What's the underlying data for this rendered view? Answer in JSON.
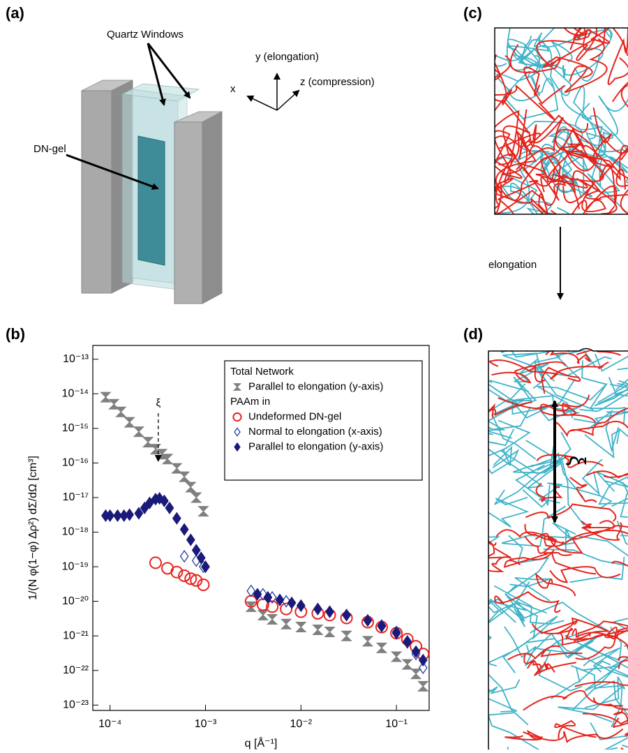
{
  "panel_labels": [
    "(a)",
    "(b)",
    "(c)",
    "(d)"
  ],
  "panel_a": {
    "window_label": "Quartz Windows",
    "gel_label": "DN-gel",
    "axis_x": "x",
    "axis_y": "y (elongation)",
    "axis_z": "z (compression)"
  },
  "panel_cd": {
    "arrow_label": "elongation",
    "length_label": "ξ"
  },
  "chart_data": {
    "type": "scatter",
    "x_label": "q [Å⁻¹]",
    "y_label": "1/(N φ(1−φ) Δρ²) dΣ/dΩ [cm³]",
    "x_log": true,
    "y_log": true,
    "xlim": [
      6.6e-05,
      0.22
    ],
    "ylim": [
      7e-24,
      2.5e-13
    ],
    "xticks": [
      {
        "value": 0.0001,
        "label": "10⁻⁴"
      },
      {
        "value": 0.001,
        "label": "10⁻³"
      },
      {
        "value": 0.01,
        "label": "10⁻²"
      },
      {
        "value": 0.1,
        "label": "10⁻¹"
      }
    ],
    "yticks": [
      {
        "value": 1e-13,
        "label": "10⁻¹³"
      },
      {
        "value": 1e-14,
        "label": "10⁻¹⁴"
      },
      {
        "value": 1e-15,
        "label": "10⁻¹⁵"
      },
      {
        "value": 1e-16,
        "label": "10⁻¹⁶"
      },
      {
        "value": 1e-17,
        "label": "10⁻¹⁷"
      },
      {
        "value": 1e-18,
        "label": "10⁻¹⁸"
      },
      {
        "value": 1e-19,
        "label": "10⁻¹⁹"
      },
      {
        "value": 1e-20,
        "label": "10⁻²⁰"
      },
      {
        "value": 1e-21,
        "label": "10⁻²¹"
      },
      {
        "value": 1e-22,
        "label": "10⁻²²"
      },
      {
        "value": 1e-23,
        "label": "10⁻²³"
      }
    ],
    "legend_position": "upper right",
    "legend_headings": [
      "Total Network",
      "PAAm in"
    ],
    "annotation": {
      "text": "ξ",
      "x": 0.00032
    },
    "series": [
      {
        "name": "Parallel to elongation (y-axis)",
        "color": "#808080",
        "marker": "hourglass",
        "group": 0,
        "x": [
          9e-05,
          0.00011,
          0.00013,
          0.00016,
          0.0002,
          0.00025,
          0.0003,
          0.00035,
          0.0004,
          0.0005,
          0.0006,
          0.0007,
          0.0008,
          0.00095,
          0.003,
          0.004,
          0.005,
          0.007,
          0.01,
          0.015,
          0.02,
          0.03,
          0.05,
          0.07,
          0.1,
          0.13,
          0.16,
          0.19
        ],
        "values": [
          8e-15,
          5e-15,
          3e-15,
          1.5e-15,
          8e-16,
          4e-16,
          2.5e-16,
          1.8e-16,
          1.3e-16,
          7e-17,
          4e-17,
          2e-17,
          1e-17,
          4e-18,
          7e-21,
          4e-21,
          3e-21,
          2.2e-21,
          1.8e-21,
          1.5e-21,
          1.3e-21,
          1e-21,
          7e-22,
          4.5e-22,
          2.5e-22,
          1.5e-22,
          8e-23,
          3.5e-23
        ]
      },
      {
        "name": "Undeformed DN-gel",
        "color": "#e8231f",
        "marker": "circle",
        "group": 1,
        "x": [
          0.0003,
          0.0004,
          0.0005,
          0.0006,
          0.0007,
          0.0008,
          0.00095,
          0.003,
          0.004,
          0.005,
          0.007,
          0.01,
          0.015,
          0.02,
          0.03,
          0.05,
          0.07,
          0.1,
          0.13,
          0.16,
          0.19
        ],
        "values": [
          1.3e-19,
          9e-20,
          7e-20,
          5.5e-20,
          4.5e-20,
          4e-20,
          3e-20,
          1e-20,
          8e-21,
          7e-21,
          6e-21,
          5e-21,
          4.5e-21,
          4e-21,
          3.3e-21,
          2.5e-21,
          1.8e-21,
          1.2e-21,
          8e-22,
          5e-22,
          3e-22
        ]
      },
      {
        "name": "Normal to elongation (x-axis)",
        "color": "#2b3f9e",
        "marker": "diamond-open",
        "group": 1,
        "x": [
          0.0006,
          0.0008,
          0.00095,
          0.003,
          0.004,
          0.005,
          0.007,
          0.01,
          0.015,
          0.02,
          0.03,
          0.05,
          0.07,
          0.1,
          0.13,
          0.16,
          0.19
        ],
        "values": [
          2e-19,
          1.5e-19,
          1e-19,
          2e-20,
          1.6e-20,
          1.3e-20,
          1e-20,
          7.5e-21,
          6e-21,
          5e-21,
          4e-21,
          2.8e-21,
          2e-21,
          1.3e-21,
          7e-22,
          3e-22,
          1.2e-22
        ]
      },
      {
        "name": "Parallel to elongation (y-axis)",
        "color": "#1a1a7a",
        "marker": "diamond",
        "group": 1,
        "x": [
          9e-05,
          0.0001,
          0.00012,
          0.00014,
          0.00016,
          0.0002,
          0.00023,
          0.00026,
          0.0003,
          0.00033,
          0.00037,
          0.00042,
          0.0005,
          0.0006,
          0.0007,
          0.0008,
          0.0009,
          0.001,
          0.0035,
          0.0045,
          0.006,
          0.008,
          0.01,
          0.015,
          0.02,
          0.03,
          0.05,
          0.07,
          0.1,
          0.13,
          0.16,
          0.19
        ],
        "values": [
          3e-18,
          3e-18,
          3e-18,
          3e-18,
          3.2e-18,
          3.5e-18,
          5e-18,
          7e-18,
          9e-18,
          9.5e-18,
          8e-18,
          5e-18,
          2.5e-18,
          1.2e-18,
          6e-19,
          3e-19,
          1.8e-19,
          1e-19,
          1.6e-20,
          1.3e-20,
          1.1e-20,
          9e-21,
          7.5e-21,
          6e-21,
          5e-21,
          4e-21,
          2.8e-21,
          1.9e-21,
          1.2e-21,
          6.5e-22,
          3.5e-22,
          2e-22
        ]
      }
    ]
  }
}
